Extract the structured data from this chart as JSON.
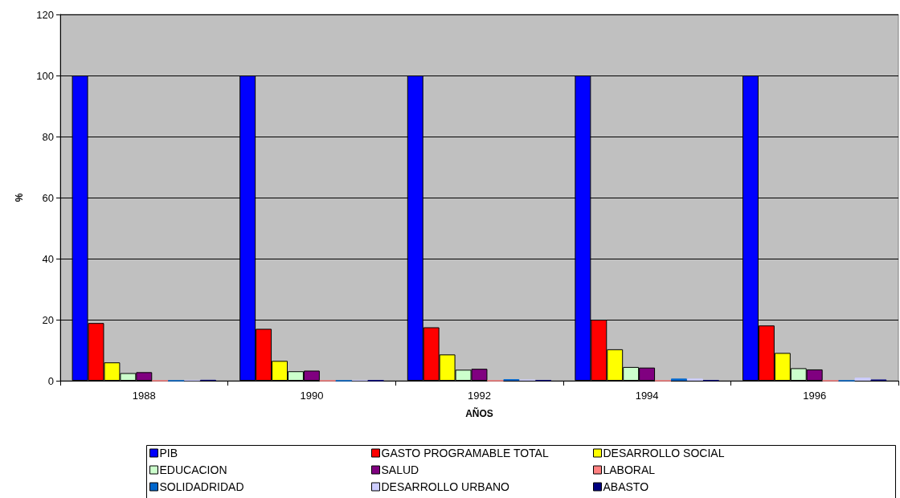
{
  "chart_data": {
    "type": "bar",
    "xlabel": "AÑOS",
    "ylabel": "%",
    "categories": [
      "1988",
      "1990",
      "1992",
      "1994",
      "1996"
    ],
    "ylim": [
      0,
      120
    ],
    "yticks": [
      0,
      20,
      40,
      60,
      80,
      100,
      120
    ],
    "grid": "y",
    "legend": "bottom",
    "series": [
      {
        "name": "PIB",
        "color": "#0000ff",
        "values": [
          100,
          100,
          100,
          100,
          100
        ]
      },
      {
        "name": "GASTO PROGRAMABLE TOTAL",
        "color": "#ff0000",
        "values": [
          18.9,
          17.0,
          17.5,
          20.0,
          18.1
        ]
      },
      {
        "name": "DESARROLLO SOCIAL",
        "color": "#ffff00",
        "values": [
          6.0,
          6.5,
          8.6,
          10.3,
          9.1
        ]
      },
      {
        "name": "EDUCACION",
        "color": "#ccffcc",
        "values": [
          2.5,
          3.1,
          3.6,
          4.5,
          4.1
        ]
      },
      {
        "name": "SALUD",
        "color": "#800080",
        "values": [
          2.8,
          3.3,
          3.9,
          4.3,
          3.7
        ]
      },
      {
        "name": "LABORAL",
        "color": "#ff8080",
        "values": [
          0,
          0,
          0,
          0,
          0
        ]
      },
      {
        "name": "SOLIDADRIDAD",
        "color": "#0066cc",
        "values": [
          0,
          0,
          0.5,
          0.7,
          0
        ]
      },
      {
        "name": "DESARROLLO URBANO",
        "color": "#ccccff",
        "values": [
          0.2,
          0.2,
          0.4,
          0.7,
          1.0
        ]
      },
      {
        "name": "ABASTO",
        "color": "#000080",
        "values": [
          0.3,
          0.1,
          0.2,
          0.2,
          0.4
        ]
      }
    ]
  }
}
